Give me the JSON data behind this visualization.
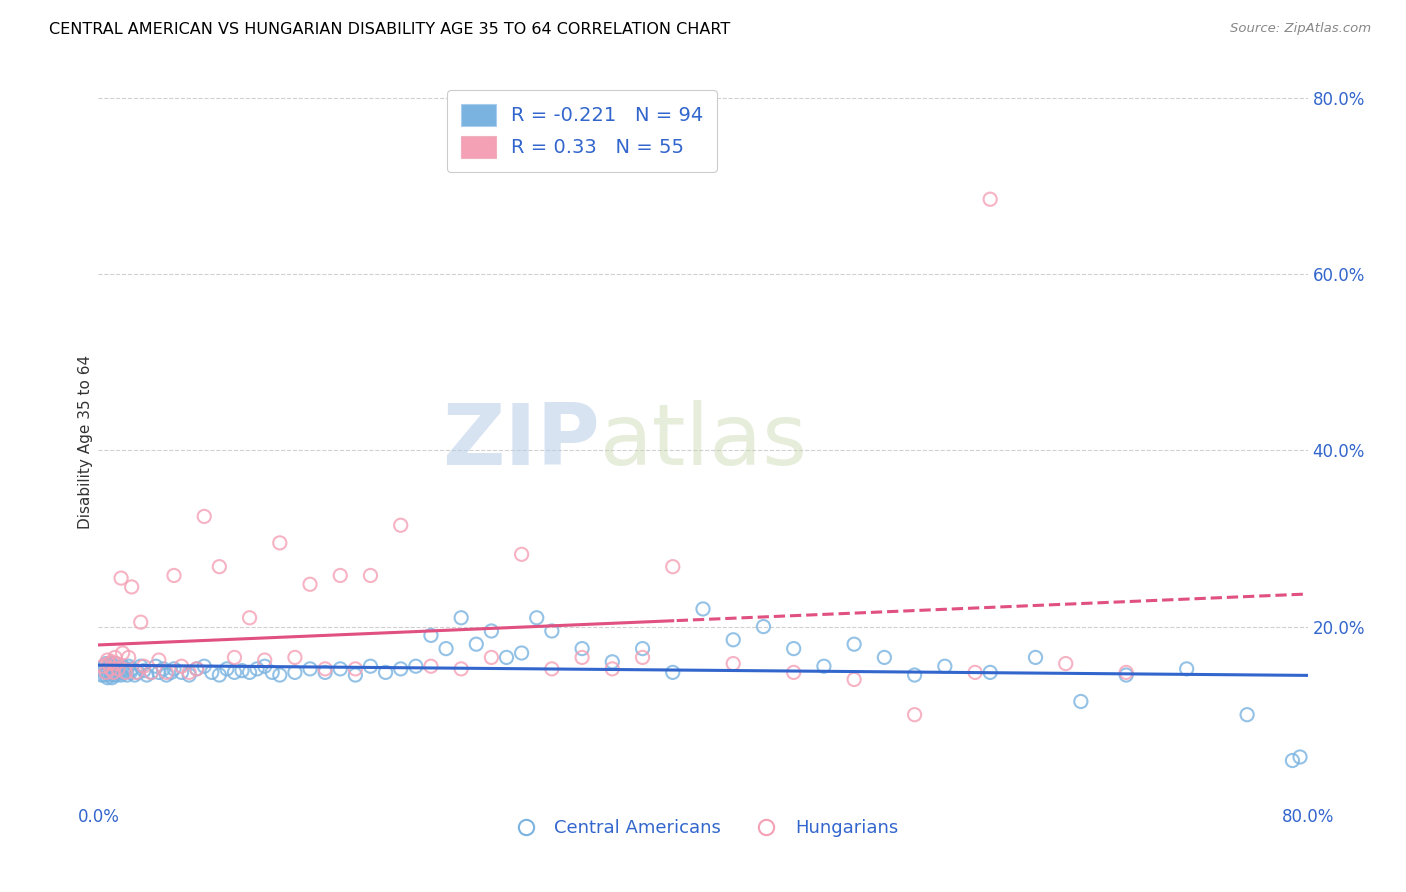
{
  "title": "CENTRAL AMERICAN VS HUNGARIAN DISABILITY AGE 35 TO 64 CORRELATION CHART",
  "source": "Source: ZipAtlas.com",
  "ylabel": "Disability Age 35 to 64",
  "xlim": [
    0.0,
    0.8
  ],
  "ylim": [
    0.0,
    0.82
  ],
  "yticks": [
    0.0,
    0.2,
    0.4,
    0.6,
    0.8
  ],
  "xticks": [
    0.0,
    0.2,
    0.4,
    0.6,
    0.8
  ],
  "xticklabels": [
    "0.0%",
    "",
    "",
    "",
    "80.0%"
  ],
  "yticklabels_right": [
    "",
    "20.0%",
    "40.0%",
    "60.0%",
    "80.0%"
  ],
  "blue_color": "#7ab3e0",
  "pink_color": "#f4a0b5",
  "blue_line_color": "#3366cc",
  "pink_line_color": "#e05080",
  "R_blue": -0.221,
  "N_blue": 94,
  "R_pink": 0.33,
  "N_pink": 55,
  "legend_label_blue": "Central Americans",
  "legend_label_pink": "Hungarians",
  "watermark_zip": "ZIP",
  "watermark_atlas": "atlas",
  "blue_x": [
    0.002,
    0.003,
    0.004,
    0.004,
    0.005,
    0.005,
    0.006,
    0.006,
    0.007,
    0.007,
    0.008,
    0.008,
    0.009,
    0.009,
    0.01,
    0.01,
    0.011,
    0.011,
    0.012,
    0.013,
    0.014,
    0.015,
    0.016,
    0.017,
    0.018,
    0.019,
    0.02,
    0.021,
    0.022,
    0.024,
    0.026,
    0.028,
    0.03,
    0.032,
    0.035,
    0.038,
    0.04,
    0.043,
    0.045,
    0.048,
    0.05,
    0.055,
    0.06,
    0.065,
    0.07,
    0.075,
    0.08,
    0.085,
    0.09,
    0.095,
    0.1,
    0.105,
    0.11,
    0.115,
    0.12,
    0.13,
    0.14,
    0.15,
    0.16,
    0.17,
    0.18,
    0.19,
    0.2,
    0.21,
    0.22,
    0.23,
    0.24,
    0.25,
    0.26,
    0.27,
    0.28,
    0.29,
    0.3,
    0.32,
    0.34,
    0.36,
    0.38,
    0.4,
    0.42,
    0.44,
    0.46,
    0.48,
    0.5,
    0.52,
    0.54,
    0.56,
    0.59,
    0.62,
    0.65,
    0.68,
    0.72,
    0.76,
    0.79,
    0.795
  ],
  "blue_y": [
    0.145,
    0.15,
    0.145,
    0.155,
    0.148,
    0.158,
    0.142,
    0.152,
    0.145,
    0.155,
    0.148,
    0.158,
    0.142,
    0.152,
    0.145,
    0.155,
    0.148,
    0.158,
    0.145,
    0.152,
    0.148,
    0.145,
    0.155,
    0.148,
    0.152,
    0.145,
    0.155,
    0.148,
    0.152,
    0.145,
    0.148,
    0.155,
    0.15,
    0.145,
    0.148,
    0.155,
    0.148,
    0.152,
    0.145,
    0.148,
    0.152,
    0.148,
    0.145,
    0.152,
    0.155,
    0.148,
    0.145,
    0.152,
    0.148,
    0.15,
    0.148,
    0.152,
    0.155,
    0.148,
    0.145,
    0.148,
    0.152,
    0.148,
    0.152,
    0.145,
    0.155,
    0.148,
    0.152,
    0.155,
    0.19,
    0.175,
    0.21,
    0.18,
    0.195,
    0.165,
    0.17,
    0.21,
    0.195,
    0.175,
    0.16,
    0.175,
    0.148,
    0.22,
    0.185,
    0.2,
    0.175,
    0.155,
    0.18,
    0.165,
    0.145,
    0.155,
    0.148,
    0.165,
    0.115,
    0.145,
    0.152,
    0.1,
    0.048,
    0.052
  ],
  "pink_x": [
    0.003,
    0.005,
    0.006,
    0.007,
    0.008,
    0.009,
    0.01,
    0.011,
    0.012,
    0.013,
    0.015,
    0.016,
    0.018,
    0.02,
    0.022,
    0.025,
    0.028,
    0.03,
    0.035,
    0.04,
    0.045,
    0.05,
    0.055,
    0.06,
    0.065,
    0.07,
    0.08,
    0.09,
    0.1,
    0.11,
    0.12,
    0.13,
    0.14,
    0.15,
    0.16,
    0.17,
    0.18,
    0.2,
    0.22,
    0.24,
    0.26,
    0.28,
    0.3,
    0.32,
    0.34,
    0.36,
    0.38,
    0.42,
    0.46,
    0.5,
    0.54,
    0.58,
    0.59,
    0.64,
    0.68
  ],
  "pink_y": [
    0.155,
    0.148,
    0.162,
    0.158,
    0.152,
    0.16,
    0.148,
    0.165,
    0.158,
    0.152,
    0.255,
    0.17,
    0.148,
    0.165,
    0.245,
    0.148,
    0.205,
    0.155,
    0.148,
    0.162,
    0.148,
    0.258,
    0.155,
    0.148,
    0.152,
    0.325,
    0.268,
    0.165,
    0.21,
    0.162,
    0.295,
    0.165,
    0.248,
    0.152,
    0.258,
    0.152,
    0.258,
    0.315,
    0.155,
    0.152,
    0.165,
    0.282,
    0.152,
    0.165,
    0.152,
    0.165,
    0.268,
    0.158,
    0.148,
    0.14,
    0.1,
    0.148,
    0.685,
    0.158,
    0.148
  ]
}
